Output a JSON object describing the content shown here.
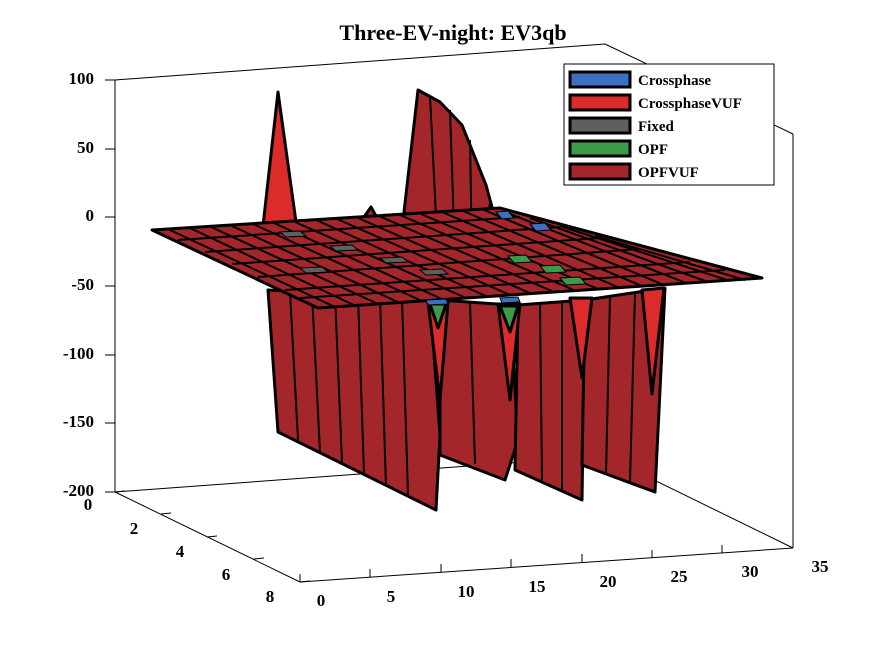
{
  "chart_data": {
    "type": "surface",
    "title": "Three-EV-night: EV3qb",
    "xlabel": "",
    "ylabel": "",
    "zlabel": "",
    "x_ticks": [
      "0",
      "5",
      "10",
      "15",
      "20",
      "25",
      "30",
      "35"
    ],
    "y_ticks": [
      "0",
      "2",
      "4",
      "6",
      "8"
    ],
    "z_ticks": [
      "100",
      "50",
      "0",
      "-50",
      "-100",
      "-150",
      "-200"
    ],
    "xlim": [
      0,
      35
    ],
    "ylim": [
      0,
      8
    ],
    "zlim": [
      -200,
      100
    ],
    "grid": false,
    "legend_position": "top-right",
    "series": [
      {
        "name": "Crossphase",
        "color": "#3a6fc4",
        "baseline": 0
      },
      {
        "name": "CrossphaseVUF",
        "color": "#dc2b2b",
        "baseline": 0
      },
      {
        "name": "Fixed",
        "color": "#5f5f5f",
        "baseline": 0
      },
      {
        "name": "OPF",
        "color": "#3c9b4a",
        "baseline": 0
      },
      {
        "name": "OPFVUF",
        "color": "#a3262a",
        "baseline": 0
      }
    ],
    "features": [
      {
        "series": "CrossphaseVUF",
        "x": 1,
        "y": 2,
        "z": 90
      },
      {
        "series": "OPFVUF",
        "x": 16,
        "y": 6,
        "z": 90
      },
      {
        "series": "OPFVUF",
        "x": 8,
        "y": 2,
        "z": 10
      },
      {
        "series": "OPFVUF",
        "x": 0,
        "y": 8,
        "z": -150
      },
      {
        "series": "OPFVUF",
        "x": 11,
        "y": 8,
        "z": -200
      },
      {
        "series": "OPFVUF",
        "x": 19,
        "y": 8,
        "z": -200
      },
      {
        "series": "OPFVUF",
        "x": 27,
        "y": 8,
        "z": -200
      },
      {
        "series": "OPFVUF",
        "x": 34,
        "y": 8,
        "z": -200
      }
    ]
  }
}
